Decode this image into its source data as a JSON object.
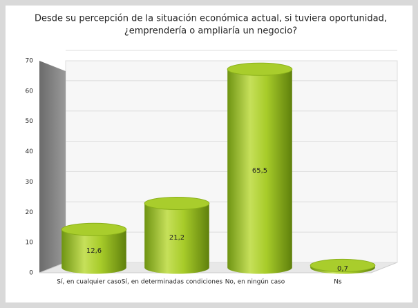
{
  "chart_data": {
    "type": "bar",
    "title": [
      "Desde su percepción de la situación económica actual, si tuviera oportunidad,",
      "¿emprendería o ampliaría un negocio?"
    ],
    "categories": [
      "Sí, en cualquier caso",
      "Sí, en determinadas condiciones",
      "No, en ningún caso",
      "Ns"
    ],
    "values": [
      12.6,
      21.2,
      65.5,
      0.7
    ],
    "value_labels": [
      "12,6",
      "21,2",
      "65,5",
      "0,7"
    ],
    "color": "#9cc21e",
    "ylim": [
      0,
      70
    ],
    "yticks": [
      0,
      10,
      20,
      30,
      40,
      50,
      60,
      70
    ],
    "grid": true
  }
}
